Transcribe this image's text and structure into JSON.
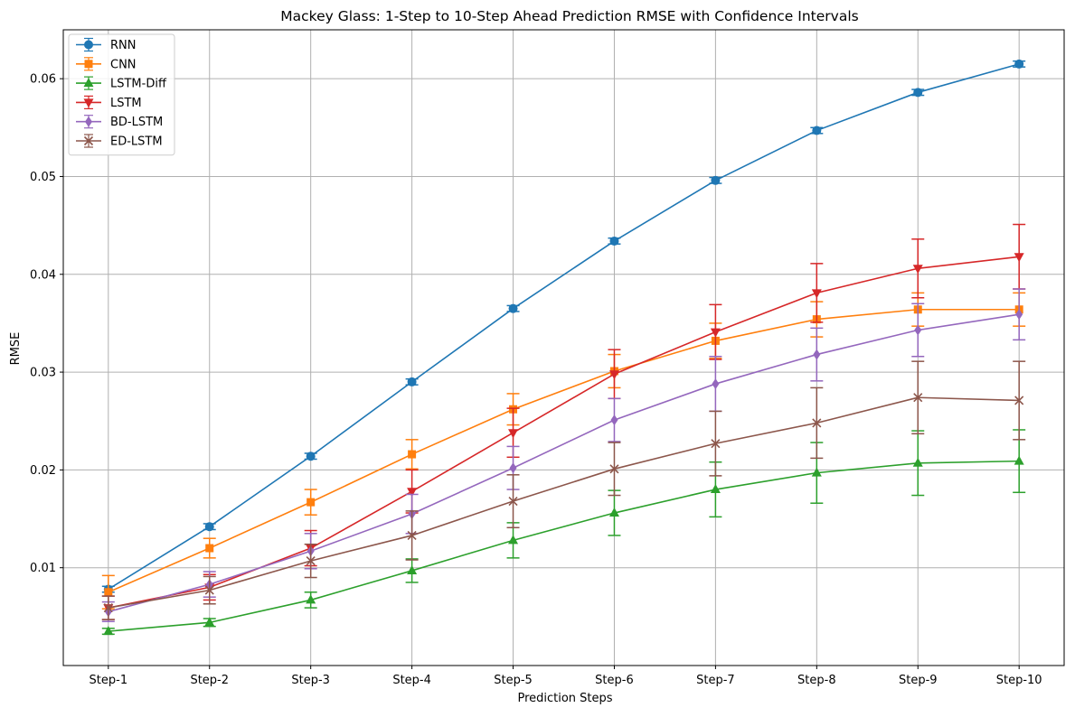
{
  "chart_data": {
    "type": "line",
    "title": "Mackey Glass: 1-Step to 10-Step Ahead Prediction RMSE with Confidence Intervals",
    "xlabel": "Prediction Steps",
    "ylabel": "RMSE",
    "categories": [
      "Step-1",
      "Step-2",
      "Step-3",
      "Step-4",
      "Step-5",
      "Step-6",
      "Step-7",
      "Step-8",
      "Step-9",
      "Step-10"
    ],
    "ylim": [
      0.0,
      0.065
    ],
    "yticks": [
      0.01,
      0.02,
      0.03,
      0.04,
      0.05,
      0.06
    ],
    "ytick_labels": [
      "0.01",
      "0.02",
      "0.03",
      "0.04",
      "0.05",
      "0.06"
    ],
    "grid": true,
    "legend_position": "top-left",
    "series": [
      {
        "name": "RNN",
        "color": "#1f77b4",
        "marker": "circle",
        "values": [
          0.0078,
          0.0142,
          0.0214,
          0.029,
          0.0365,
          0.0434,
          0.0496,
          0.0547,
          0.0586,
          0.0615
        ],
        "errors": [
          0.0003,
          0.0003,
          0.0003,
          0.0003,
          0.0003,
          0.0003,
          0.0003,
          0.0003,
          0.0003,
          0.0003
        ]
      },
      {
        "name": "CNN",
        "color": "#ff7f0e",
        "marker": "square",
        "values": [
          0.0075,
          0.012,
          0.0167,
          0.0216,
          0.0262,
          0.0301,
          0.0332,
          0.0354,
          0.0364,
          0.0364
        ],
        "errors": [
          0.0017,
          0.001,
          0.0013,
          0.0015,
          0.0016,
          0.0017,
          0.0018,
          0.0018,
          0.0017,
          0.0017
        ]
      },
      {
        "name": "LSTM-Diff",
        "color": "#2ca02c",
        "marker": "triangle-up",
        "values": [
          0.0035,
          0.0044,
          0.0067,
          0.0097,
          0.0128,
          0.0156,
          0.018,
          0.0197,
          0.0207,
          0.0209
        ],
        "errors": [
          0.0003,
          0.0004,
          0.0008,
          0.0012,
          0.0018,
          0.0023,
          0.0028,
          0.0031,
          0.0033,
          0.0032
        ]
      },
      {
        "name": "LSTM",
        "color": "#d62728",
        "marker": "triangle-down",
        "values": [
          0.0059,
          0.008,
          0.012,
          0.0178,
          0.0238,
          0.0298,
          0.0341,
          0.0381,
          0.0406,
          0.0418
        ],
        "errors": [
          0.0012,
          0.0013,
          0.0018,
          0.0022,
          0.0025,
          0.0025,
          0.0028,
          0.003,
          0.003,
          0.0033
        ]
      },
      {
        "name": "BD-LSTM",
        "color": "#9467bd",
        "marker": "diamond",
        "values": [
          0.0055,
          0.0083,
          0.0117,
          0.0155,
          0.0202,
          0.0251,
          0.0288,
          0.0318,
          0.0343,
          0.0359
        ],
        "errors": [
          0.001,
          0.0013,
          0.0018,
          0.002,
          0.0022,
          0.0022,
          0.0028,
          0.0027,
          0.0027,
          0.0026
        ]
      },
      {
        "name": "ED-LSTM",
        "color": "#8c564b",
        "marker": "x",
        "values": [
          0.0059,
          0.0077,
          0.0107,
          0.0133,
          0.0168,
          0.0201,
          0.0227,
          0.0248,
          0.0274,
          0.0271
        ],
        "errors": [
          0.0012,
          0.0014,
          0.0017,
          0.0025,
          0.0027,
          0.0027,
          0.0033,
          0.0036,
          0.0037,
          0.004
        ]
      }
    ]
  }
}
